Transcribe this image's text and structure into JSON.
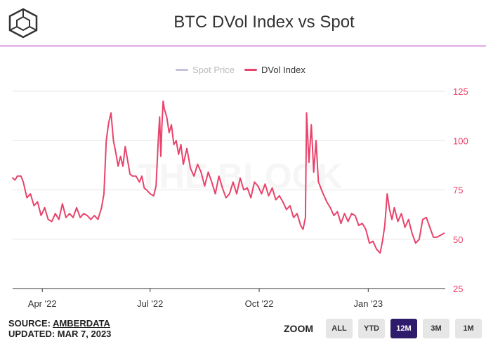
{
  "header": {
    "title": "BTC DVol Index vs Spot",
    "logo_icon": "the-block-cube-logo"
  },
  "watermark": "THE BLOCK",
  "legend": [
    {
      "label": "Spot Price",
      "color": "#c9c0dc",
      "active": false
    },
    {
      "label": "DVol Index",
      "color": "#e8436b",
      "active": true
    }
  ],
  "footer": {
    "source_prefix": "SOURCE: ",
    "source_name": "AMBERDATA",
    "updated": "UPDATED: MAR 7, 2023"
  },
  "zoom": {
    "label": "ZOOM",
    "buttons": [
      "ALL",
      "YTD",
      "12M",
      "3M",
      "1M"
    ],
    "active": "12M"
  },
  "colors": {
    "accent_rule": "#b018c0",
    "series": "#e8436b",
    "axis_text_y": "#e8436b",
    "axis_text_x": "#333333",
    "grid": "#e6e6e6",
    "zoom_active": "#2e1b6b"
  },
  "chart_data": {
    "type": "line",
    "title": "BTC DVol Index vs Spot",
    "xlabel": "",
    "ylabel": "",
    "y_axis_position": "right",
    "ylim": [
      25,
      125
    ],
    "yticks": [
      25,
      50,
      75,
      100,
      125
    ],
    "xlim": [
      "2022-03-07",
      "2023-03-07"
    ],
    "xticks": [
      {
        "label": "Apr '22",
        "date": "2022-04-01"
      },
      {
        "label": "Jul '22",
        "date": "2022-07-01"
      },
      {
        "label": "Oct '22",
        "date": "2022-10-01"
      },
      {
        "label": "Jan '23",
        "date": "2023-01-01"
      }
    ],
    "grid": true,
    "legend_position": "top-center",
    "series": [
      {
        "name": "DVol Index",
        "color": "#e8436b",
        "points": [
          [
            "2022-03-07",
            81
          ],
          [
            "2022-03-09",
            80
          ],
          [
            "2022-03-11",
            82
          ],
          [
            "2022-03-14",
            82
          ],
          [
            "2022-03-16",
            79
          ],
          [
            "2022-03-19",
            71
          ],
          [
            "2022-03-22",
            73
          ],
          [
            "2022-03-25",
            67
          ],
          [
            "2022-03-28",
            69
          ],
          [
            "2022-03-31",
            62
          ],
          [
            "2022-04-03",
            66
          ],
          [
            "2022-04-06",
            60
          ],
          [
            "2022-04-09",
            59
          ],
          [
            "2022-04-12",
            63
          ],
          [
            "2022-04-15",
            60
          ],
          [
            "2022-04-18",
            68
          ],
          [
            "2022-04-21",
            61
          ],
          [
            "2022-04-24",
            63
          ],
          [
            "2022-04-27",
            61
          ],
          [
            "2022-04-30",
            66
          ],
          [
            "2022-05-03",
            61
          ],
          [
            "2022-05-06",
            63
          ],
          [
            "2022-05-09",
            62
          ],
          [
            "2022-05-12",
            60
          ],
          [
            "2022-05-15",
            62
          ],
          [
            "2022-05-18",
            60
          ],
          [
            "2022-05-21",
            66
          ],
          [
            "2022-05-23",
            73
          ],
          [
            "2022-05-25",
            100
          ],
          [
            "2022-05-27",
            109
          ],
          [
            "2022-05-29",
            114
          ],
          [
            "2022-05-31",
            100
          ],
          [
            "2022-06-02",
            94
          ],
          [
            "2022-06-04",
            87
          ],
          [
            "2022-06-06",
            92
          ],
          [
            "2022-06-08",
            87
          ],
          [
            "2022-06-10",
            97
          ],
          [
            "2022-06-12",
            90
          ],
          [
            "2022-06-14",
            83
          ],
          [
            "2022-06-16",
            82
          ],
          [
            "2022-06-19",
            82
          ],
          [
            "2022-06-22",
            79
          ],
          [
            "2022-06-24",
            82
          ],
          [
            "2022-06-26",
            76
          ],
          [
            "2022-06-28",
            75
          ],
          [
            "2022-07-01",
            73
          ],
          [
            "2022-07-04",
            72
          ],
          [
            "2022-07-06",
            77
          ],
          [
            "2022-07-08",
            102
          ],
          [
            "2022-07-09",
            112
          ],
          [
            "2022-07-10",
            92
          ],
          [
            "2022-07-11",
            108
          ],
          [
            "2022-07-12",
            120
          ],
          [
            "2022-07-13",
            116
          ],
          [
            "2022-07-15",
            112
          ],
          [
            "2022-07-17",
            104
          ],
          [
            "2022-07-19",
            108
          ],
          [
            "2022-07-21",
            98
          ],
          [
            "2022-07-23",
            100
          ],
          [
            "2022-07-25",
            93
          ],
          [
            "2022-07-27",
            98
          ],
          [
            "2022-07-29",
            88
          ],
          [
            "2022-08-01",
            96
          ],
          [
            "2022-08-04",
            86
          ],
          [
            "2022-08-07",
            82
          ],
          [
            "2022-08-10",
            88
          ],
          [
            "2022-08-13",
            84
          ],
          [
            "2022-08-16",
            77
          ],
          [
            "2022-08-19",
            84
          ],
          [
            "2022-08-22",
            79
          ],
          [
            "2022-08-25",
            73
          ],
          [
            "2022-08-28",
            82
          ],
          [
            "2022-08-31",
            76
          ],
          [
            "2022-09-03",
            71
          ],
          [
            "2022-09-06",
            73
          ],
          [
            "2022-09-09",
            79
          ],
          [
            "2022-09-12",
            73
          ],
          [
            "2022-09-15",
            81
          ],
          [
            "2022-09-18",
            75
          ],
          [
            "2022-09-21",
            76
          ],
          [
            "2022-09-24",
            71
          ],
          [
            "2022-09-27",
            79
          ],
          [
            "2022-09-30",
            77
          ],
          [
            "2022-10-03",
            73
          ],
          [
            "2022-10-06",
            78
          ],
          [
            "2022-10-09",
            72
          ],
          [
            "2022-10-12",
            76
          ],
          [
            "2022-10-15",
            70
          ],
          [
            "2022-10-18",
            72
          ],
          [
            "2022-10-21",
            69
          ],
          [
            "2022-10-24",
            65
          ],
          [
            "2022-10-27",
            67
          ],
          [
            "2022-10-30",
            61
          ],
          [
            "2022-11-02",
            63
          ],
          [
            "2022-11-05",
            57
          ],
          [
            "2022-11-07",
            55
          ],
          [
            "2022-11-09",
            61
          ],
          [
            "2022-11-10",
            114
          ],
          [
            "2022-11-12",
            89
          ],
          [
            "2022-11-14",
            108
          ],
          [
            "2022-11-16",
            84
          ],
          [
            "2022-11-18",
            100
          ],
          [
            "2022-11-20",
            79
          ],
          [
            "2022-11-22",
            76
          ],
          [
            "2022-11-24",
            73
          ],
          [
            "2022-11-27",
            69
          ],
          [
            "2022-11-30",
            66
          ],
          [
            "2022-12-03",
            62
          ],
          [
            "2022-12-06",
            64
          ],
          [
            "2022-12-09",
            58
          ],
          [
            "2022-12-12",
            63
          ],
          [
            "2022-12-15",
            59
          ],
          [
            "2022-12-18",
            63
          ],
          [
            "2022-12-21",
            62
          ],
          [
            "2022-12-24",
            57
          ],
          [
            "2022-12-27",
            58
          ],
          [
            "2022-12-30",
            55
          ],
          [
            "2023-01-02",
            48
          ],
          [
            "2023-01-05",
            49
          ],
          [
            "2023-01-08",
            45
          ],
          [
            "2023-01-11",
            43
          ],
          [
            "2023-01-13",
            49
          ],
          [
            "2023-01-15",
            57
          ],
          [
            "2023-01-17",
            73
          ],
          [
            "2023-01-19",
            65
          ],
          [
            "2023-01-21",
            60
          ],
          [
            "2023-01-23",
            66
          ],
          [
            "2023-01-26",
            59
          ],
          [
            "2023-01-29",
            63
          ],
          [
            "2023-02-01",
            56
          ],
          [
            "2023-02-04",
            60
          ],
          [
            "2023-02-07",
            53
          ],
          [
            "2023-02-10",
            48
          ],
          [
            "2023-02-13",
            50
          ],
          [
            "2023-02-16",
            60
          ],
          [
            "2023-02-19",
            61
          ],
          [
            "2023-02-22",
            56
          ],
          [
            "2023-02-25",
            51
          ],
          [
            "2023-02-28",
            51
          ],
          [
            "2023-03-03",
            52
          ],
          [
            "2023-03-06",
            53
          ]
        ]
      }
    ]
  }
}
